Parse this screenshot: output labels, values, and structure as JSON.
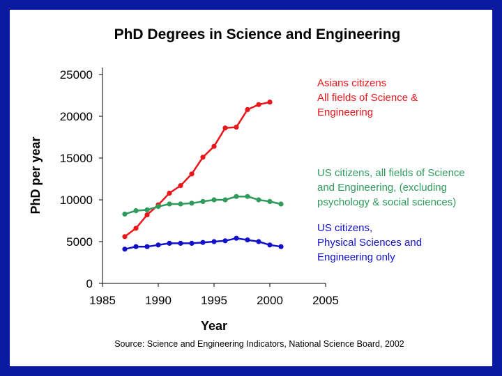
{
  "chart_data": {
    "type": "line",
    "title": "PhD Degrees in Science and Engineering",
    "xlabel": "Year",
    "ylabel": "PhD per year",
    "xlim": [
      1985,
      2005
    ],
    "ylim": [
      0,
      25000
    ],
    "x_ticks": [
      "1985",
      "1990",
      "1995",
      "2000",
      "2005"
    ],
    "y_ticks": [
      "0",
      "5000",
      "10000",
      "15000",
      "20000",
      "25000"
    ],
    "grid": false,
    "source": "Source: Science and Engineering Indicators, National Science Board, 2002",
    "series": [
      {
        "name": "Asians citizens All fields of Science & Engineering",
        "label_lines": [
          "Asians citizens",
          "All fields of Science &",
          "Engineering"
        ],
        "color": "#e8161b",
        "x": [
          1987,
          1988,
          1989,
          1990,
          1991,
          1992,
          1993,
          1994,
          1995,
          1996,
          1997,
          1998,
          1999,
          2000
        ],
        "values": [
          5600,
          6600,
          8200,
          9400,
          10800,
          11700,
          13100,
          15100,
          16400,
          18600,
          18700,
          20800,
          21400,
          21700
        ]
      },
      {
        "name": "US citizens, all fields of Science and Engineering, (excluding psychology & social sciences)",
        "label_lines": [
          "US citizens, all fields of Science",
          "and Engineering, (excluding",
          "psychology & social sciences)"
        ],
        "color": "#2e9a5b",
        "x": [
          1987,
          1988,
          1989,
          1990,
          1991,
          1992,
          1993,
          1994,
          1995,
          1996,
          1997,
          1998,
          1999,
          2000,
          2001
        ],
        "values": [
          8300,
          8700,
          8800,
          9200,
          9500,
          9500,
          9600,
          9800,
          10000,
          10000,
          10400,
          10400,
          10000,
          9800,
          9500
        ]
      },
      {
        "name": "US citizens, Physical Sciences and Engineering only",
        "label_lines": [
          "US citizens,",
          "Physical Sciences and",
          "Engineering only"
        ],
        "color": "#1010c8",
        "x": [
          1987,
          1988,
          1989,
          1990,
          1991,
          1992,
          1993,
          1994,
          1995,
          1996,
          1997,
          1998,
          1999,
          2000,
          2001
        ],
        "values": [
          4100,
          4400,
          4400,
          4600,
          4800,
          4800,
          4800,
          4900,
          5000,
          5100,
          5400,
          5200,
          5000,
          4600,
          4400
        ]
      }
    ]
  }
}
